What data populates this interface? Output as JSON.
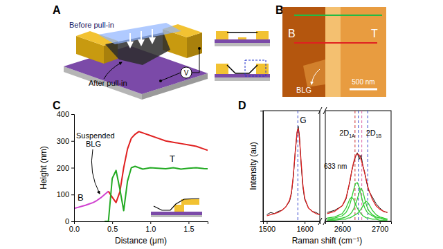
{
  "figure": {
    "panel_labels": [
      "A",
      "B",
      "C",
      "D"
    ],
    "schematic": {
      "before": "Before pull-in",
      "after": "After pull-in",
      "voltage": "V"
    },
    "afm": {
      "left": "B",
      "right": "T",
      "flake": "BLG",
      "scale_bar": "500 nm"
    }
  },
  "chart_data": [
    {
      "type": "line",
      "xlabel": "Distance (μm)",
      "ylabel": "Height (nm)",
      "xlim": [
        0,
        1.75
      ],
      "xticks": [
        {
          "value": 0,
          "label": "0.0"
        },
        0.5,
        {
          "value": 1,
          "label": "1.0"
        },
        1.5
      ],
      "ylim": [
        0,
        400
      ],
      "yticks": [
        0,
        100,
        200,
        300,
        400
      ],
      "series": [
        {
          "color": "#d040d0",
          "x": [
            0,
            0.05,
            0.1,
            0.15,
            0.2,
            0.25,
            0.3,
            0.35,
            0.4,
            0.45
          ],
          "values": [
            48,
            52,
            56,
            60,
            65,
            70,
            78,
            88,
            100,
            112
          ]
        },
        {
          "color": "#e02020",
          "x": [
            0.45,
            0.5,
            0.55,
            0.6,
            0.65,
            0.7,
            0.75,
            0.8,
            0.85,
            0.9,
            1.0,
            1.1,
            1.2,
            1.3,
            1.4,
            1.5,
            1.6,
            1.7,
            1.75
          ],
          "values": [
            112,
            90,
            70,
            110,
            200,
            270,
            310,
            325,
            335,
            330,
            320,
            310,
            300,
            295,
            290,
            285,
            280,
            270,
            265
          ]
        },
        {
          "color": "#22aa22",
          "x": [
            0.4,
            0.45,
            0.5,
            0.55,
            0.6,
            0.65,
            0.7,
            0.75,
            0.8,
            0.9,
            1.0,
            1.1,
            1.2,
            1.3,
            1.4,
            1.5,
            1.6,
            1.7,
            1.75
          ],
          "values": [
            0,
            0,
            160,
            190,
            120,
            40,
            150,
            200,
            205,
            195,
            200,
            198,
            196,
            200,
            195,
            198,
            200,
            197,
            196
          ]
        }
      ],
      "annotations": [
        "Suspended",
        "BLG",
        "B",
        "T"
      ]
    },
    {
      "type": "line",
      "xlabel": "Raman shift (cm⁻¹)",
      "ylabel": "Intensity (au)",
      "tick_labels": "x",
      "xlim": [
        1490,
        1640
      ],
      "xticks": [
        1500,
        1600
      ],
      "ylim": [
        0,
        100
      ],
      "x": [
        1500,
        1510,
        1520,
        1530,
        1540,
        1550,
        1560,
        1565,
        1570,
        1575,
        1580,
        1583,
        1586,
        1590,
        1595,
        1600,
        1610,
        1620,
        1630,
        1640
      ],
      "series": [
        {
          "color": "#111111",
          "values": [
            6,
            8,
            7,
            9,
            10,
            13,
            18,
            25,
            40,
            62,
            80,
            86,
            78,
            55,
            32,
            20,
            12,
            9,
            8,
            6
          ]
        },
        {
          "color": "#e02020",
          "values": [
            5,
            6,
            7,
            8,
            10,
            13,
            19,
            26,
            41,
            63,
            81,
            84,
            76,
            57,
            34,
            21,
            12,
            9,
            7,
            6
          ]
        }
      ],
      "vlines": {
        "values": [
          1582
        ],
        "colors": [
          "#3344cc"
        ]
      },
      "annotations": [
        "G",
        "633 nm"
      ]
    },
    {
      "type": "line",
      "tick_labels": "x",
      "xlim": [
        2555,
        2730
      ],
      "xticks": [
        2600,
        2700
      ],
      "ylim": [
        0,
        100
      ],
      "x": [
        2560,
        2580,
        2600,
        2610,
        2615,
        2620,
        2625,
        2630,
        2635,
        2640,
        2645,
        2650,
        2655,
        2660,
        2665,
        2670,
        2680,
        2690,
        2700,
        2710,
        2720
      ],
      "series": [
        {
          "color": "#111111",
          "values": [
            8,
            10,
            14,
            20,
            28,
            35,
            45,
            52,
            58,
            62,
            56,
            60,
            50,
            44,
            35,
            28,
            22,
            16,
            12,
            9,
            8
          ]
        },
        {
          "color": "#33cc33",
          "values": [
            3,
            4,
            7,
            12,
            16,
            20,
            22,
            20,
            16,
            12,
            9,
            7,
            5,
            4,
            3,
            3,
            2,
            2,
            1,
            1,
            1
          ]
        },
        {
          "color": "#33cc33",
          "values": [
            2,
            3,
            5,
            8,
            11,
            15,
            21,
            28,
            34,
            35,
            31,
            24,
            17,
            12,
            9,
            7,
            5,
            3,
            3,
            2,
            2
          ]
        },
        {
          "color": "#33cc33",
          "values": [
            1,
            2,
            3,
            4,
            5,
            6,
            8,
            11,
            15,
            20,
            26,
            30,
            27,
            20,
            14,
            10,
            6,
            4,
            3,
            2,
            2
          ]
        },
        {
          "color": "#33cc33",
          "values": [
            1,
            1,
            2,
            2,
            3,
            3,
            4,
            5,
            6,
            7,
            9,
            11,
            14,
            17,
            18,
            16,
            10,
            6,
            4,
            3,
            2
          ]
        },
        {
          "color": "#e02020",
          "values": [
            7,
            9,
            14,
            21,
            28,
            36,
            45,
            53,
            59,
            61,
            60,
            56,
            50,
            43,
            36,
            29,
            20,
            14,
            11,
            9,
            8
          ]
        }
      ],
      "vlines": {
        "values": [
          2634,
          2643,
          2652,
          2668
        ],
        "colors": [
          "#cc3333",
          "#3344cc",
          "#dd66aa",
          "#3344cc"
        ]
      },
      "annotations": [
        {
          "text": "2D",
          "sub": "1A"
        },
        {
          "text": "2D",
          "sub": "1B"
        }
      ]
    }
  ]
}
